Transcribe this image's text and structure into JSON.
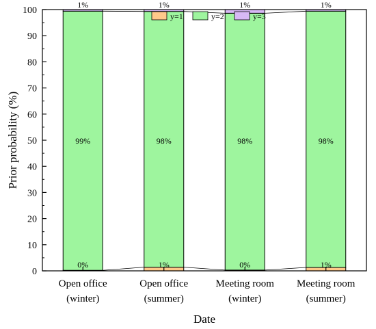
{
  "chart_data": {
    "type": "bar",
    "stacked": true,
    "categories": [
      [
        "Open office",
        "(winter)"
      ],
      [
        "Open office",
        "(summer)"
      ],
      [
        "Meeting room",
        "(winter)"
      ],
      [
        "Meeting room",
        "(summer)"
      ]
    ],
    "series": [
      {
        "name": "y=1",
        "values": [
          0.2,
          1.4,
          0.3,
          1.3
        ],
        "labels": [
          "0%",
          "1%",
          "0%",
          "1%"
        ],
        "color": "#ffc98a"
      },
      {
        "name": "y=2",
        "values": [
          99.2,
          97.9,
          98.3,
          98.1
        ],
        "labels": [
          "99%",
          "98%",
          "98%",
          "98%"
        ],
        "color": "#9ef59e"
      },
      {
        "name": "y=3",
        "values": [
          0.6,
          0.7,
          1.4,
          0.6
        ],
        "labels": [
          "1%",
          "1%",
          "1%",
          "1%"
        ],
        "color": "#d7b8f5"
      }
    ],
    "xlabel": "Date",
    "ylabel": "Prior probability (%)",
    "ylim": [
      0,
      100
    ],
    "yticks": [
      0,
      10,
      20,
      30,
      40,
      50,
      60,
      70,
      80,
      90,
      100
    ],
    "legend_position": "top-center",
    "grid": false,
    "connector_lines": true
  }
}
